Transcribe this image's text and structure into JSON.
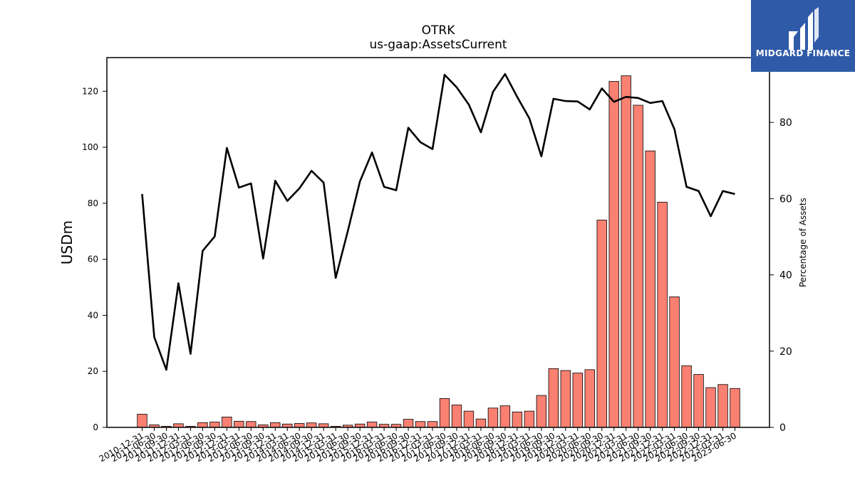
{
  "chart_data": {
    "type": "bar",
    "title": "OTRK",
    "subtitle": "us-gaap:AssetsCurrent",
    "ylabel": "USDm",
    "y2label": "Percentage of Assets",
    "ylim": [
      0,
      132
    ],
    "y2lim": [
      0,
      97
    ],
    "yticks": [
      "0",
      "20",
      "40",
      "60",
      "80",
      "100",
      "120"
    ],
    "y2ticks": [
      "0",
      "20",
      "40",
      "60",
      "80"
    ],
    "categories": [
      "2010-12-31",
      "2011-06-30",
      "2011-09-30",
      "2011-12-31",
      "2012-03-31",
      "2012-06-30",
      "2012-09-30",
      "2012-12-31",
      "2013-03-31",
      "2013-06-30",
      "2013-09-30",
      "2013-12-31",
      "2014-03-31",
      "2014-06-30",
      "2014-09-30",
      "2014-12-31",
      "2015-03-31",
      "2015-06-30",
      "2015-09-30",
      "2015-12-31",
      "2016-03-31",
      "2016-06-30",
      "2016-09-30",
      "2016-12-31",
      "2017-03-31",
      "2017-06-30",
      "2017-09-30",
      "2017-12-31",
      "2018-03-31",
      "2018-06-30",
      "2018-09-30",
      "2018-12-31",
      "2019-03-31",
      "2019-06-30",
      "2019-09-30",
      "2019-12-31",
      "2020-03-31",
      "2020-06-30",
      "2020-09-30",
      "2020-12-31",
      "2021-03-31",
      "2021-06-30",
      "2021-09-30",
      "2021-12-31",
      "2022-03-31",
      "2022-06-30",
      "2022-09-30",
      "2022-12-31",
      "2023-03-31",
      "2023-06-30"
    ],
    "series": [
      {
        "type": "bar",
        "axis": "left",
        "color": "#fa8072",
        "values": [
          4.7,
          0.9,
          0.4,
          1.3,
          0.4,
          1.7,
          1.9,
          3.7,
          2.2,
          2.1,
          0.9,
          1.7,
          1.2,
          1.4,
          1.6,
          1.3,
          0.4,
          0.8,
          1.2,
          1.9,
          1.1,
          1.1,
          2.9,
          2.1,
          2.1,
          10.3,
          8.0,
          5.8,
          3.0,
          6.9,
          7.7,
          5.5,
          5.8,
          11.4,
          21.0,
          20.3,
          19.4,
          20.6,
          74.0,
          123.5,
          125.5,
          115.0,
          98.7,
          80.4,
          46.6,
          22.0,
          18.9,
          14.2,
          15.3,
          13.9
        ]
      },
      {
        "type": "line",
        "axis": "right",
        "color": "#000000",
        "values": [
          61.2,
          23.7,
          15.1,
          37.8,
          19.3,
          46.3,
          50.1,
          73.3,
          62.9,
          64.0,
          44.3,
          64.7,
          59.4,
          62.7,
          67.3,
          64.2,
          39.2,
          51.5,
          64.5,
          72.1,
          63.1,
          62.2,
          78.6,
          74.8,
          73.0,
          92.5,
          89.2,
          84.7,
          77.4,
          88.0,
          92.7,
          86.7,
          81.1,
          71.1,
          86.2,
          85.6,
          85.5,
          83.4,
          88.9,
          85.4,
          86.7,
          86.4,
          85.1,
          85.6,
          78.2,
          63.1,
          62.0,
          55.4,
          62.0,
          61.2
        ]
      }
    ],
    "grid": false,
    "legend": "none"
  },
  "logo": {
    "text": "MIDGARD FINANCE",
    "color": "#2f5aa8"
  }
}
